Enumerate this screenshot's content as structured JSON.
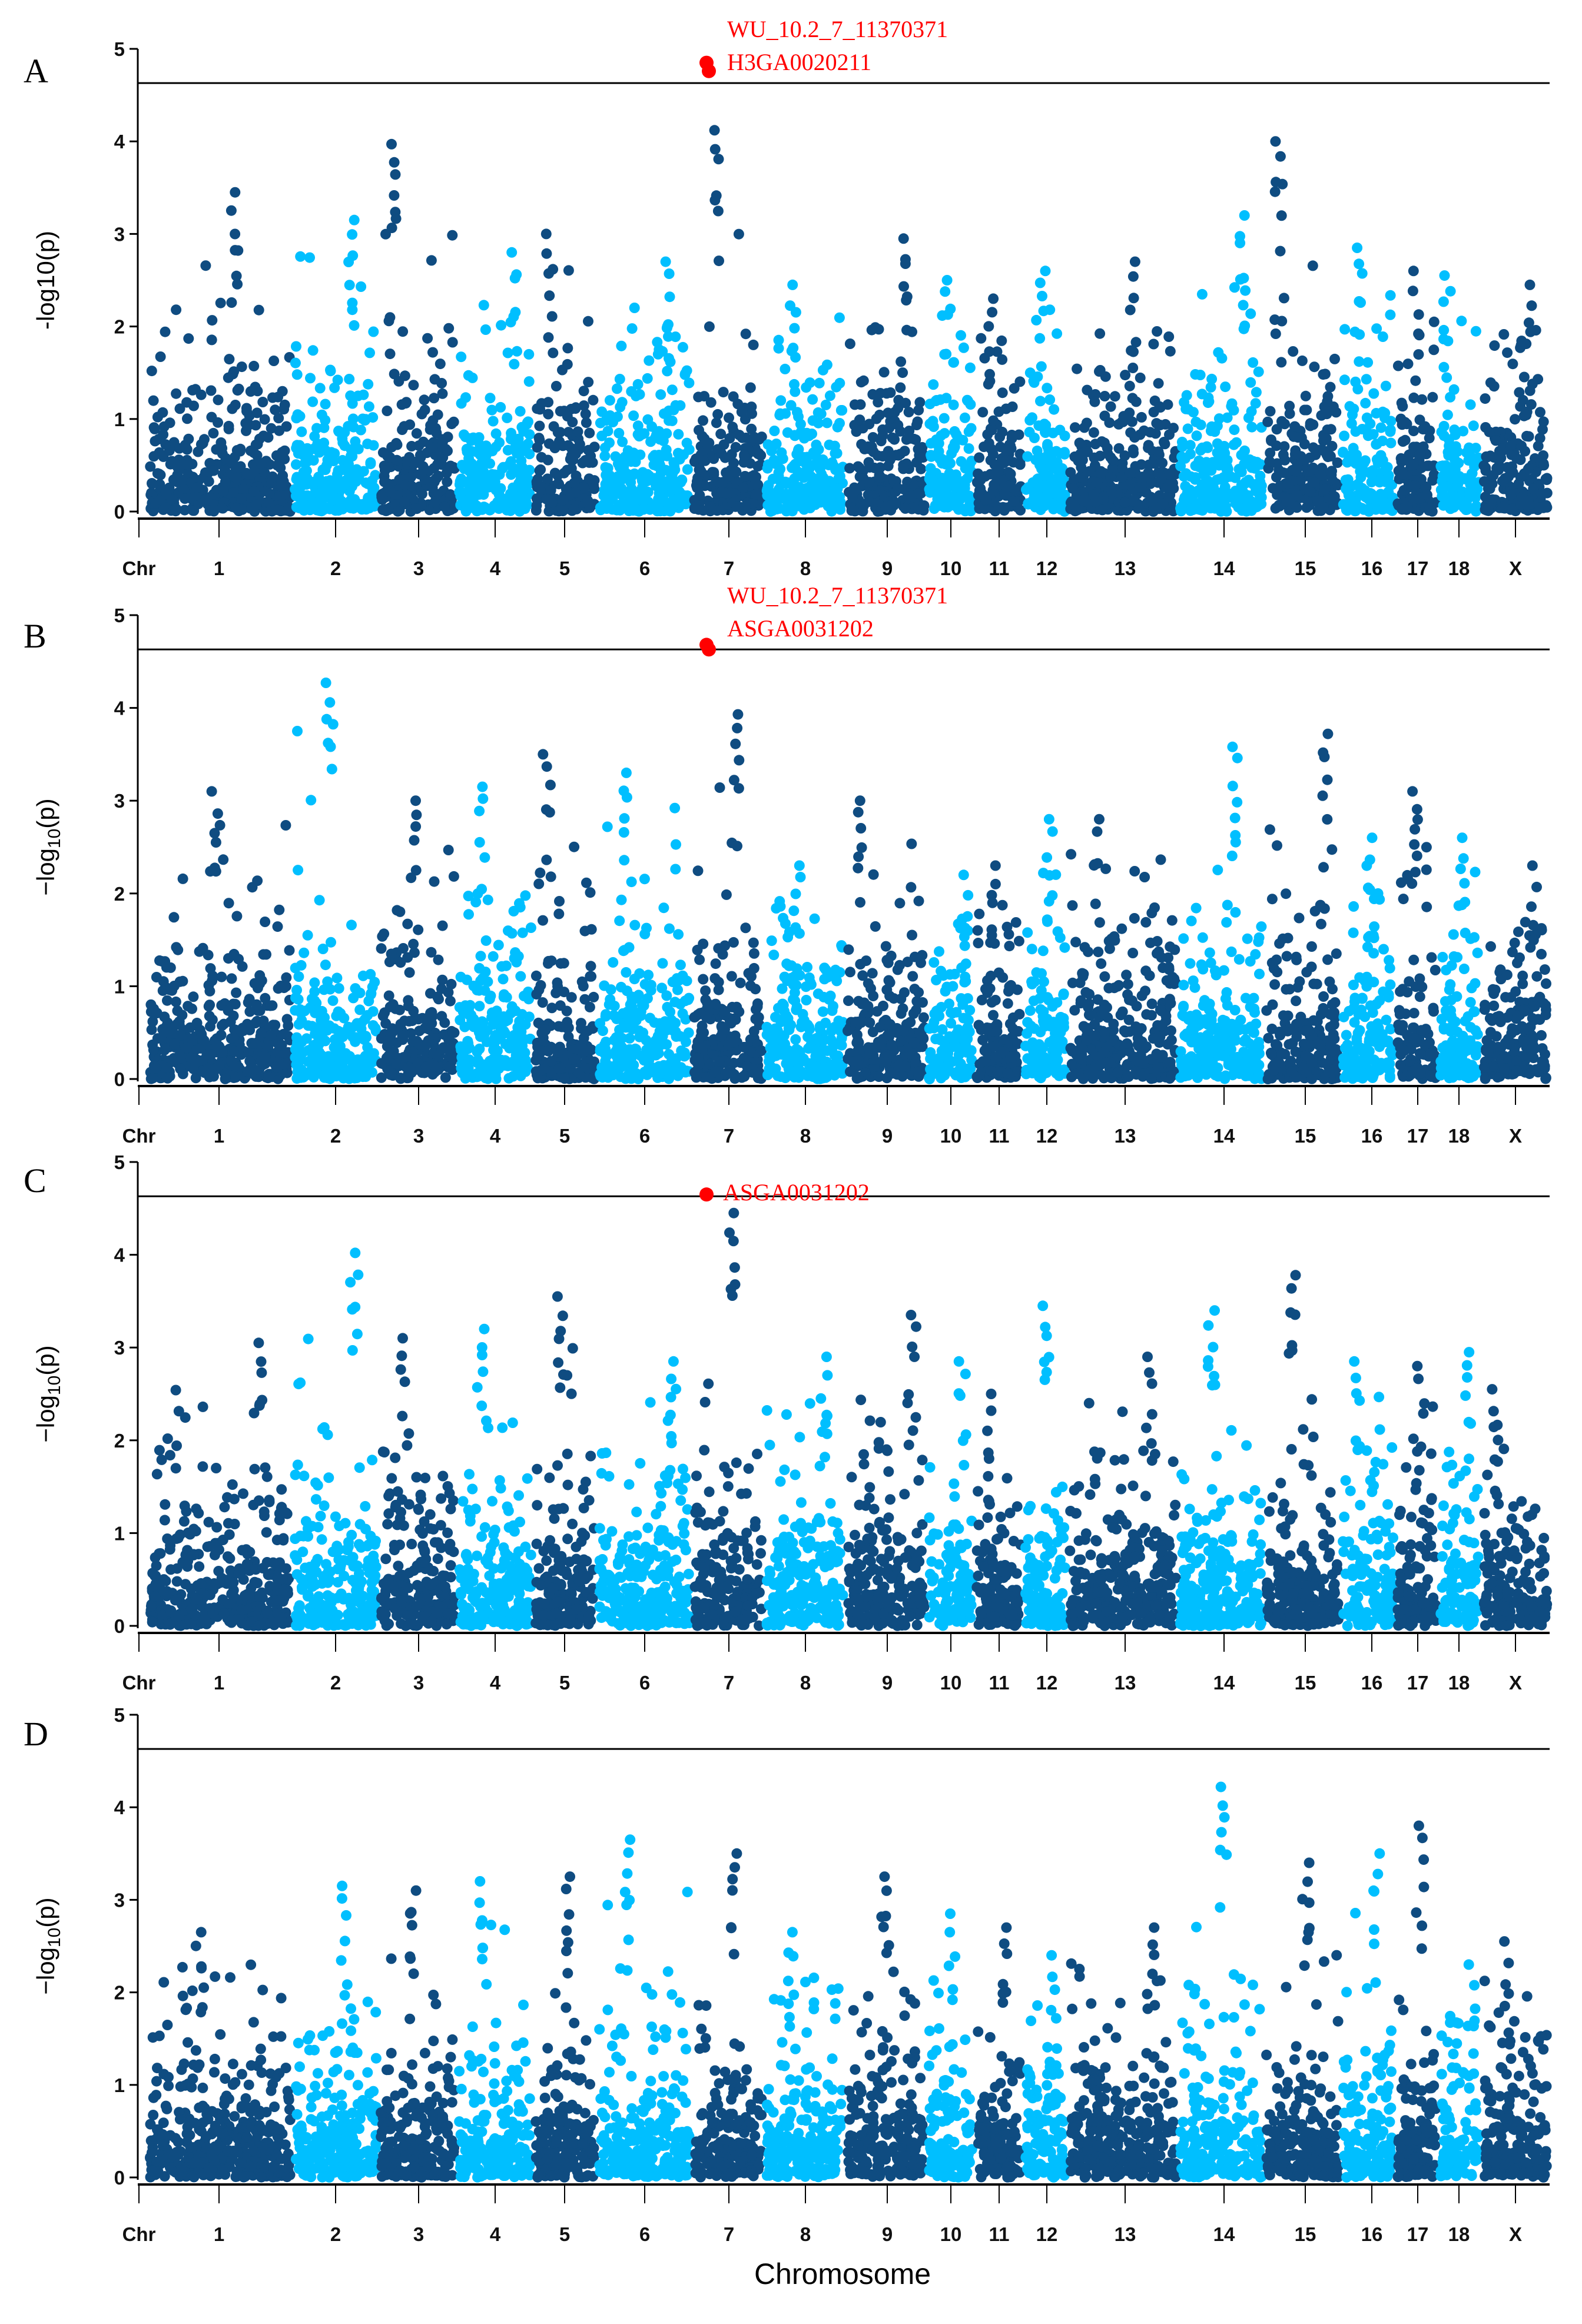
{
  "chart_data": {
    "type": "scatter",
    "subtype": "manhattan",
    "xlabel": "Chromosome",
    "ylabel": "-log10(p)",
    "ylabel_parts": {
      "pre": "−log",
      "sub": "10",
      "post": "(p)"
    },
    "ylim": [
      0,
      5
    ],
    "yticks": [
      "0",
      "1",
      "2",
      "3",
      "4",
      "5"
    ],
    "threshold": 4.63,
    "axis_start_label": "Chr",
    "chromosomes": [
      "1",
      "2",
      "3",
      "4",
      "5",
      "6",
      "7",
      "8",
      "9",
      "10",
      "11",
      "12",
      "13",
      "14",
      "15",
      "16",
      "17",
      "18",
      "X"
    ],
    "colors": {
      "dark": "#0f4c81",
      "light": "#00bfff",
      "significant": "#ff0000",
      "threshold": "#000000"
    },
    "panels": [
      {
        "label": "A",
        "max_per_chromosome": [
          3.45,
          3.15,
          3.97,
          2.8,
          3.0,
          2.7,
          4.12,
          2.45,
          2.95,
          2.5,
          2.3,
          2.6,
          2.7,
          3.2,
          4.0,
          2.85,
          2.6,
          2.55,
          2.45
        ],
        "significant": [
          {
            "snp": "WU_10.2_7_11370371",
            "chromosome": "7",
            "value": 4.85
          },
          {
            "snp": "H3GA0020211",
            "chromosome": "7",
            "value": 4.76
          }
        ]
      },
      {
        "label": "B",
        "max_per_chromosome": [
          3.1,
          4.27,
          3.0,
          3.15,
          3.5,
          3.3,
          3.93,
          2.3,
          3.0,
          2.2,
          2.3,
          2.8,
          2.8,
          3.58,
          3.72,
          2.6,
          3.1,
          2.6,
          2.3
        ],
        "significant": [
          {
            "snp": "WU_10.2_7_11370371",
            "chromosome": "7",
            "value": 4.68
          },
          {
            "snp": "ASGA0031202",
            "chromosome": "7",
            "value": 4.63
          }
        ]
      },
      {
        "label": "C",
        "max_per_chromosome": [
          3.05,
          4.02,
          3.1,
          3.2,
          3.55,
          2.85,
          4.45,
          2.9,
          3.35,
          2.85,
          2.5,
          3.45,
          2.9,
          3.4,
          3.78,
          2.85,
          2.8,
          2.95,
          2.55
        ],
        "significant": [
          {
            "snp": "ASGA0031202",
            "chromosome": "7",
            "value": 4.65
          }
        ]
      },
      {
        "label": "D",
        "max_per_chromosome": [
          2.65,
          3.15,
          3.1,
          3.2,
          3.25,
          3.65,
          3.5,
          2.65,
          3.25,
          2.85,
          2.7,
          2.4,
          2.7,
          4.22,
          3.4,
          3.5,
          3.8,
          2.3,
          2.55
        ],
        "significant": []
      }
    ]
  }
}
